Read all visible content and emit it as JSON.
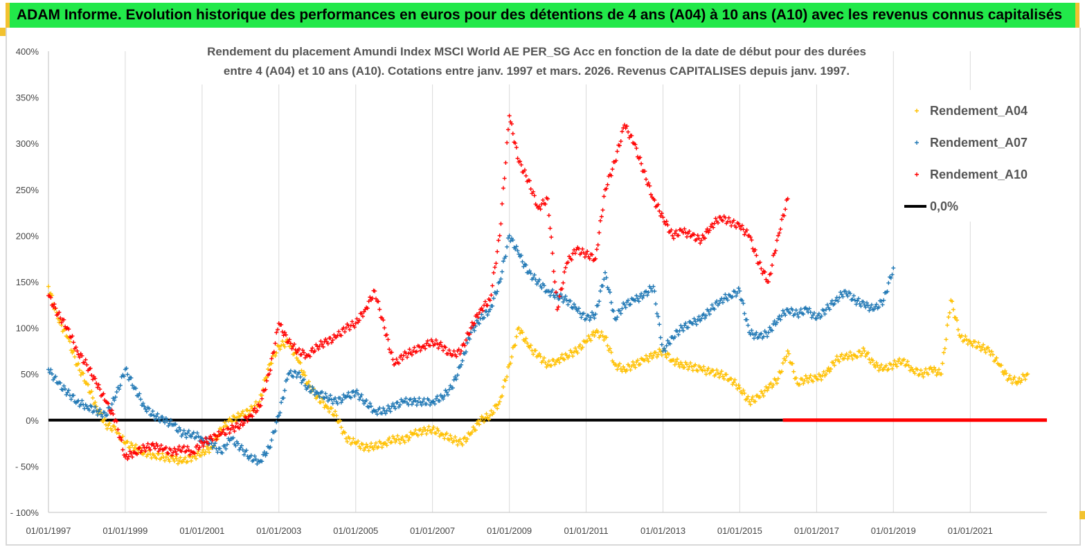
{
  "header": {
    "banner_title": "ADAM Informe. Evolution historique des performances en euros pour des détentions de 4 ans (A04) à 10 ans (A10) avec les revenus connus capitalisés"
  },
  "colors": {
    "banner": "#22e84a",
    "accent": "#f2c230",
    "a04": "#ffc000",
    "a07": "#1f77b4",
    "a10": "#ff0000",
    "zero": "#000000"
  },
  "chart_data": {
    "type": "scatter",
    "title_lines": [
      "Rendement du placement Amundi Index MSCI World AE PER_SG Acc en fonction de la date de début pour des durées",
      "entre 4 (A04) et 10 ans (A10). Cotations entre janv. 1997 et mars. 2026. Revenus CAPITALISES depuis janv. 1997."
    ],
    "xlabel": "",
    "ylabel": "",
    "x_range": [
      "1997-01-01",
      "2022-12-31"
    ],
    "y_range": [
      -100,
      400
    ],
    "y_ticks": [
      "400%",
      "350%",
      "300%",
      "250%",
      "200%",
      "150%",
      "100%",
      "50%",
      "0%",
      "- 50%",
      "- 100%"
    ],
    "y_tick_values": [
      400,
      350,
      300,
      250,
      200,
      150,
      100,
      50,
      0,
      -50,
      -100
    ],
    "x_ticks": [
      "01/01/1997",
      "01/01/1999",
      "01/01/2001",
      "01/01/2003",
      "01/01/2005",
      "01/01/2007",
      "01/01/2009",
      "01/01/2011",
      "01/01/2013",
      "01/01/2015",
      "01/01/2017",
      "01/01/2019",
      "01/01/2021"
    ],
    "x_tick_years": [
      1997,
      1999,
      2001,
      2003,
      2005,
      2007,
      2009,
      2011,
      2013,
      2015,
      2017,
      2019,
      2021
    ],
    "grid": "vertical",
    "legend_position": "top-right",
    "series": [
      {
        "name": "Rendement_A04",
        "marker": "+",
        "color": "#ffc000",
        "x": [
          "1997-01-01",
          "1997-04-01",
          "1997-07-01",
          "1997-10-01",
          "1998-01-01",
          "1998-04-01",
          "1998-07-01",
          "1998-10-01",
          "1999-01-01",
          "1999-04-01",
          "1999-07-01",
          "1999-10-01",
          "2000-01-01",
          "2000-04-01",
          "2000-07-01",
          "2000-10-01",
          "2001-01-01",
          "2001-04-01",
          "2001-07-01",
          "2001-10-01",
          "2002-01-01",
          "2002-04-01",
          "2002-07-01",
          "2002-10-01",
          "2003-01-01",
          "2003-04-01",
          "2003-07-01",
          "2003-10-01",
          "2004-01-01",
          "2004-04-01",
          "2004-07-01",
          "2004-10-01",
          "2005-01-01",
          "2005-04-01",
          "2005-07-01",
          "2005-10-01",
          "2006-01-01",
          "2006-04-01",
          "2006-07-01",
          "2006-10-01",
          "2007-01-01",
          "2007-04-01",
          "2007-07-01",
          "2007-10-01",
          "2008-01-01",
          "2008-04-01",
          "2008-07-01",
          "2008-10-01",
          "2009-01-01",
          "2009-04-01",
          "2009-07-01",
          "2009-10-01",
          "2010-01-01",
          "2010-04-01",
          "2010-07-01",
          "2010-10-01",
          "2011-01-01",
          "2011-04-01",
          "2011-07-01",
          "2011-10-01",
          "2012-01-01",
          "2012-04-01",
          "2012-07-01",
          "2012-10-01",
          "2013-01-01",
          "2013-04-01",
          "2013-07-01",
          "2013-10-01",
          "2014-01-01",
          "2014-04-01",
          "2014-07-01",
          "2014-10-01",
          "2015-01-01",
          "2015-04-01",
          "2015-07-01",
          "2015-10-01",
          "2016-01-01",
          "2016-04-01",
          "2016-07-01",
          "2016-10-01",
          "2017-01-01",
          "2017-04-01",
          "2017-07-01",
          "2017-10-01",
          "2018-01-01",
          "2018-04-01",
          "2018-07-01",
          "2018-10-01",
          "2019-01-01",
          "2019-04-01",
          "2019-07-01",
          "2019-10-01",
          "2020-01-01",
          "2020-04-01",
          "2020-07-01",
          "2020-10-01",
          "2021-01-01",
          "2021-04-01",
          "2021-07-01",
          "2021-10-01",
          "2022-01-01",
          "2022-04-01",
          "2022-07-01"
        ],
        "y": [
          145,
          110,
          90,
          60,
          40,
          15,
          -5,
          -10,
          -25,
          -30,
          -35,
          -38,
          -40,
          -42,
          -45,
          -40,
          -35,
          -30,
          -10,
          0,
          5,
          10,
          20,
          60,
          80,
          85,
          65,
          40,
          25,
          15,
          5,
          -20,
          -25,
          -30,
          -28,
          -25,
          -20,
          -22,
          -15,
          -12,
          -10,
          -15,
          -20,
          -25,
          -15,
          0,
          5,
          20,
          60,
          100,
          80,
          70,
          60,
          65,
          70,
          75,
          85,
          95,
          90,
          60,
          55,
          60,
          65,
          70,
          75,
          65,
          60,
          58,
          55,
          52,
          50,
          45,
          35,
          20,
          25,
          35,
          45,
          75,
          40,
          45,
          45,
          50,
          65,
          70,
          70,
          75,
          60,
          55,
          60,
          65,
          55,
          50,
          55,
          50,
          130,
          90,
          85,
          80,
          75,
          60,
          45,
          42,
          50
        ]
      },
      {
        "name": "Rendement_A07",
        "marker": "+",
        "color": "#1f77b4",
        "x": [
          "1997-01-01",
          "1997-04-01",
          "1997-07-01",
          "1997-10-01",
          "1998-01-01",
          "1998-04-01",
          "1998-07-01",
          "1998-10-01",
          "1999-01-01",
          "1999-04-01",
          "1999-07-01",
          "1999-10-01",
          "2000-01-01",
          "2000-04-01",
          "2000-07-01",
          "2000-10-01",
          "2001-01-01",
          "2001-04-01",
          "2001-07-01",
          "2001-10-01",
          "2002-01-01",
          "2002-04-01",
          "2002-07-01",
          "2002-10-01",
          "2003-01-01",
          "2003-04-01",
          "2003-07-01",
          "2003-10-01",
          "2004-01-01",
          "2004-04-01",
          "2004-07-01",
          "2004-10-01",
          "2005-01-01",
          "2005-04-01",
          "2005-07-01",
          "2005-10-01",
          "2006-01-01",
          "2006-04-01",
          "2006-07-01",
          "2006-10-01",
          "2007-01-01",
          "2007-04-01",
          "2007-07-01",
          "2007-10-01",
          "2008-01-01",
          "2008-04-01",
          "2008-07-01",
          "2008-10-01",
          "2009-01-01",
          "2009-04-01",
          "2009-07-01",
          "2009-10-01",
          "2010-01-01",
          "2010-04-01",
          "2010-07-01",
          "2010-10-01",
          "2011-01-01",
          "2011-04-01",
          "2011-07-01",
          "2011-10-01",
          "2012-01-01",
          "2012-04-01",
          "2012-07-01",
          "2012-10-01",
          "2013-01-01",
          "2013-04-01",
          "2013-07-01",
          "2013-10-01",
          "2014-01-01",
          "2014-04-01",
          "2014-07-01",
          "2014-10-01",
          "2015-01-01",
          "2015-04-01",
          "2015-07-01",
          "2015-10-01",
          "2016-01-01",
          "2016-04-01",
          "2016-07-01",
          "2016-10-01",
          "2017-01-01",
          "2017-04-01",
          "2017-07-01",
          "2017-10-01",
          "2018-01-01",
          "2018-04-01",
          "2018-07-01",
          "2018-10-01",
          "2019-01-01"
        ],
        "y": [
          55,
          40,
          30,
          20,
          15,
          10,
          5,
          25,
          55,
          35,
          15,
          5,
          0,
          -5,
          -15,
          -15,
          -20,
          -25,
          -35,
          -20,
          -30,
          -40,
          -45,
          -30,
          5,
          50,
          50,
          35,
          30,
          25,
          20,
          25,
          30,
          20,
          10,
          10,
          15,
          20,
          20,
          20,
          20,
          25,
          35,
          60,
          95,
          110,
          120,
          150,
          200,
          180,
          160,
          150,
          140,
          135,
          130,
          120,
          110,
          115,
          160,
          110,
          125,
          130,
          135,
          145,
          75,
          90,
          100,
          105,
          110,
          120,
          130,
          135,
          140,
          95,
          90,
          95,
          110,
          120,
          115,
          120,
          110,
          120,
          130,
          140,
          130,
          125,
          120,
          130,
          165
        ]
      },
      {
        "name": "Rendement_A10",
        "marker": "+",
        "color": "#ff0000",
        "x": [
          "1997-01-01",
          "1997-04-01",
          "1997-07-01",
          "1997-10-01",
          "1998-01-01",
          "1998-04-01",
          "1998-07-01",
          "1998-10-01",
          "1999-01-01",
          "1999-04-01",
          "1999-07-01",
          "1999-10-01",
          "2000-01-01",
          "2000-04-01",
          "2000-07-01",
          "2000-10-01",
          "2001-01-01",
          "2001-04-01",
          "2001-07-01",
          "2001-10-01",
          "2002-01-01",
          "2002-04-01",
          "2002-07-01",
          "2002-10-01",
          "2003-01-01",
          "2003-04-01",
          "2003-07-01",
          "2003-10-01",
          "2004-01-01",
          "2004-04-01",
          "2004-07-01",
          "2004-10-01",
          "2005-01-01",
          "2005-04-01",
          "2005-07-01",
          "2005-10-01",
          "2006-01-01",
          "2006-04-01",
          "2006-07-01",
          "2006-10-01",
          "2007-01-01",
          "2007-04-01",
          "2007-07-01",
          "2007-10-01",
          "2008-01-01",
          "2008-04-01",
          "2008-07-01",
          "2008-10-01",
          "2009-01-01",
          "2009-04-01",
          "2009-07-01",
          "2009-10-01",
          "2010-01-01",
          "2010-04-01",
          "2010-07-01",
          "2010-10-01",
          "2011-01-01",
          "2011-04-01",
          "2011-07-01",
          "2011-10-01",
          "2012-01-01",
          "2012-04-01",
          "2012-07-01",
          "2012-10-01",
          "2013-01-01",
          "2013-04-01",
          "2013-07-01",
          "2013-10-01",
          "2014-01-01",
          "2014-04-01",
          "2014-07-01",
          "2014-10-01",
          "2015-01-01",
          "2015-04-01",
          "2015-07-01",
          "2015-10-01",
          "2016-01-01",
          "2016-04-01"
        ],
        "y": [
          135,
          115,
          100,
          75,
          60,
          40,
          20,
          0,
          -40,
          -35,
          -30,
          -28,
          -32,
          -35,
          -30,
          -35,
          -25,
          -20,
          -15,
          -10,
          -5,
          5,
          15,
          50,
          105,
          85,
          75,
          70,
          80,
          85,
          90,
          100,
          105,
          120,
          140,
          100,
          60,
          70,
          75,
          80,
          85,
          80,
          70,
          75,
          100,
          120,
          130,
          200,
          330,
          280,
          260,
          230,
          240,
          120,
          170,
          185,
          180,
          175,
          250,
          280,
          320,
          300,
          270,
          240,
          220,
          200,
          205,
          200,
          195,
          210,
          220,
          215,
          210,
          200,
          170,
          150,
          200,
          240
        ]
      },
      {
        "name": "0,0%",
        "color": "#000000",
        "x": [
          "1997-01-01",
          "2016-02-15"
        ],
        "y": [
          0,
          0
        ]
      }
    ],
    "a10_zero_segment": {
      "x": [
        "2016-02-15",
        "2022-12-31"
      ],
      "y": [
        0,
        0
      ],
      "color": "#ff0000"
    }
  }
}
